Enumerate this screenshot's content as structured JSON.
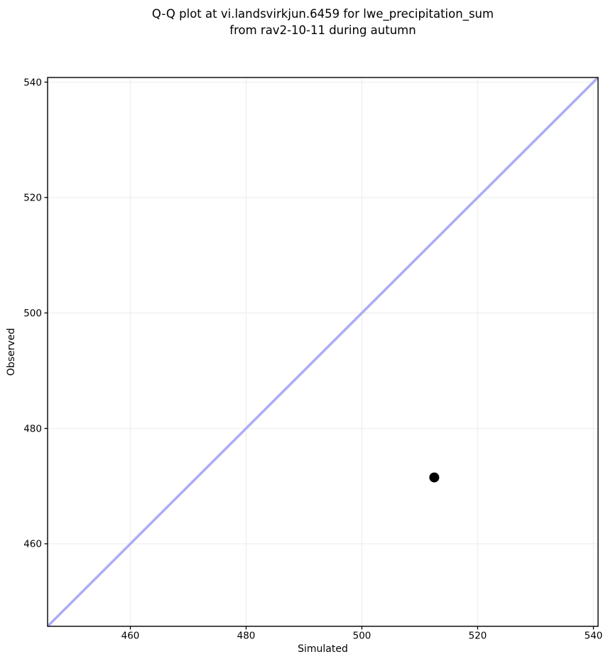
{
  "title_lines": [
    "Q-Q plot at vi.landsvirkjun.6459 for lwe_precipitation_sum",
    "from rav2-10-11 during autumn"
  ],
  "chart_data": {
    "type": "scatter",
    "title": "Q-Q plot at vi.landsvirkjun.6459 for lwe_precipitation_sum from rav2-10-11 during autumn",
    "xlabel": "Simulated",
    "ylabel": "Observed",
    "xlim": [
      445.7,
      540.8
    ],
    "ylim": [
      445.7,
      540.8
    ],
    "xticks": [
      460,
      480,
      500,
      520,
      540
    ],
    "yticks": [
      460,
      480,
      500,
      520,
      540
    ],
    "grid": true,
    "legend": "none",
    "points": [
      {
        "x": 512.5,
        "y": 471.5
      }
    ],
    "identity_line": {
      "x0": 445.7,
      "y0": 445.7,
      "x1": 540.8,
      "y1": 540.8
    },
    "colors": {
      "point": "#000000",
      "identity_line": "#adadf5",
      "grid": "#efefef",
      "spine": "#000000",
      "tick_label": "#000000"
    }
  }
}
